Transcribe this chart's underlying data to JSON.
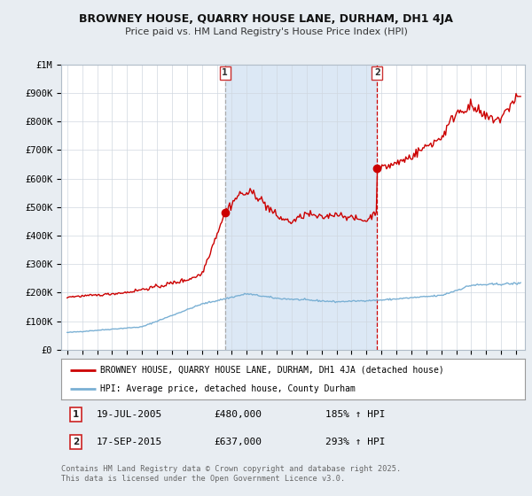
{
  "title": "BROWNEY HOUSE, QUARRY HOUSE LANE, DURHAM, DH1 4JA",
  "subtitle": "Price paid vs. HM Land Registry's House Price Index (HPI)",
  "legend_label_red": "BROWNEY HOUSE, QUARRY HOUSE LANE, DURHAM, DH1 4JA (detached house)",
  "legend_label_blue": "HPI: Average price, detached house, County Durham",
  "annotation1_date": "19-JUL-2005",
  "annotation1_price": "£480,000",
  "annotation1_hpi": "185% ↑ HPI",
  "annotation2_date": "17-SEP-2015",
  "annotation2_price": "£637,000",
  "annotation2_hpi": "293% ↑ HPI",
  "footer": "Contains HM Land Registry data © Crown copyright and database right 2025.\nThis data is licensed under the Open Government Licence v3.0.",
  "bg_color": "#e8edf2",
  "plot_bg": "#ffffff",
  "shaded_region_color": "#dce8f5",
  "red_color": "#cc0000",
  "blue_color": "#7ab0d4",
  "vline1_color": "#aaaaaa",
  "vline2_color": "#cc0000",
  "ylim": [
    0,
    1000000
  ],
  "yticks": [
    0,
    100000,
    200000,
    300000,
    400000,
    500000,
    600000,
    700000,
    800000,
    900000,
    1000000
  ],
  "ytick_labels": [
    "£0",
    "£100K",
    "£200K",
    "£300K",
    "£400K",
    "£500K",
    "£600K",
    "£700K",
    "£800K",
    "£900K",
    "£1M"
  ],
  "x_start_year": 1995,
  "x_end_year": 2025,
  "sale1_year": 2005.54,
  "sale1_price": 480000,
  "sale2_year": 2015.71,
  "sale2_price": 637000
}
